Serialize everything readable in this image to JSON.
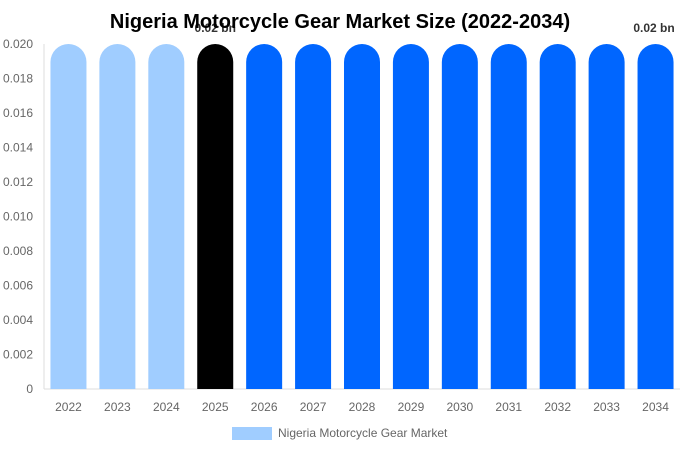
{
  "chart_data": {
    "type": "bar",
    "title": "Nigeria Motorcycle Gear Market Size (2022-2034)",
    "categories": [
      "2022",
      "2023",
      "2024",
      "2025",
      "2026",
      "2027",
      "2028",
      "2029",
      "2030",
      "2031",
      "2032",
      "2033",
      "2034"
    ],
    "series": [
      {
        "name": "Nigeria Motorcycle Gear Market",
        "values": [
          0.02,
          0.02,
          0.02,
          0.02,
          0.02,
          0.02,
          0.02,
          0.02,
          0.02,
          0.02,
          0.02,
          0.02,
          0.02
        ]
      }
    ],
    "ylim": [
      0,
      0.02
    ],
    "yticks": [
      "0",
      "0.002",
      "0.004",
      "0.006",
      "0.008",
      "0.010",
      "0.012",
      "0.014",
      "0.016",
      "0.018",
      "0.020"
    ],
    "annotations": [
      {
        "category": "2025",
        "text": "0.02 bn"
      },
      {
        "category": "2034",
        "text": "0.02 bn"
      }
    ],
    "bar_colors": [
      "#a0cdff",
      "#a0cdff",
      "#a0cdff",
      "#000000",
      "#0066ff",
      "#0066ff",
      "#0066ff",
      "#0066ff",
      "#0066ff",
      "#0066ff",
      "#0066ff",
      "#0066ff",
      "#0066ff"
    ],
    "legend": {
      "label": "Nigeria Motorcycle Gear Market",
      "color": "#a0cdff",
      "position": "bottom"
    },
    "grid": false
  }
}
